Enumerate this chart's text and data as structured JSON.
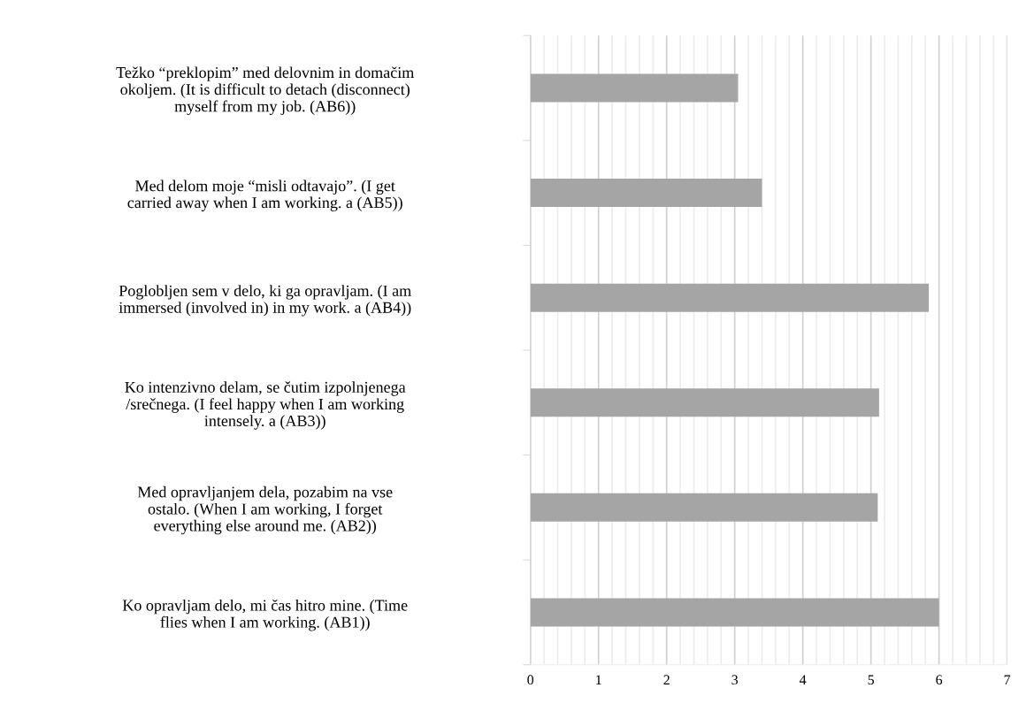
{
  "chart_data": {
    "type": "bar",
    "orientation": "horizontal",
    "categories": [
      "Težko “preklopim” med delovnim in domačim\nokoljem. (It is difficult to detach (disconnect)\nmyself from my job. (AB6))",
      "Med delom moje “misli odtavajo”. (I get\ncarried away when I am working. a (AB5))",
      "Poglobljen sem v delo, ki ga opravljam. (I am\nimmersed (involved in) in my work. a (AB4))",
      "Ko intenzivno delam, se čutim izpolnjenega\n/srečnega. (I feel happy when I am working\nintensely. a (AB3))",
      "Med opravljanjem dela, pozabim na vse\nostalo. (When I am working, I forget\neverything else around me. (AB2))",
      "Ko opravljam delo, mi čas hitro mine. (Time\nflies when I am working. (AB1))"
    ],
    "values": [
      3.05,
      3.4,
      5.85,
      5.12,
      5.1,
      6.0
    ],
    "color": "#a5a5a5",
    "xlim": [
      0,
      7
    ],
    "xticks": [
      0,
      {
        "value": 0.2,
        "label": null
      },
      {
        "value": 0.4,
        "label": null
      },
      {
        "value": 0.6,
        "label": null
      },
      {
        "value": 0.8,
        "label": null
      },
      1,
      {
        "value": 1.2,
        "label": null
      },
      {
        "value": 1.4,
        "label": null
      },
      {
        "value": 1.6,
        "label": null
      },
      {
        "value": 1.8,
        "label": null
      },
      2,
      {
        "value": 2.2,
        "label": null
      },
      {
        "value": 2.4,
        "label": null
      },
      {
        "value": 2.6,
        "label": null
      },
      {
        "value": 2.8,
        "label": null
      },
      3,
      {
        "value": 3.2,
        "label": null
      },
      {
        "value": 3.4,
        "label": null
      },
      {
        "value": 3.6,
        "label": null
      },
      {
        "value": 3.8,
        "label": null
      },
      4,
      {
        "value": 4.2,
        "label": null
      },
      {
        "value": 4.4,
        "label": null
      },
      {
        "value": 4.6,
        "label": null
      },
      {
        "value": 4.8,
        "label": null
      },
      5,
      {
        "value": 5.2,
        "label": null
      },
      {
        "value": 5.4,
        "label": null
      },
      {
        "value": 5.6,
        "label": null
      },
      {
        "value": 5.8,
        "label": null
      },
      6,
      {
        "value": 6.2,
        "label": null
      },
      {
        "value": 6.4,
        "label": null
      },
      {
        "value": 6.6,
        "label": null
      },
      {
        "value": 6.8,
        "label": null
      },
      7
    ],
    "grid": "x"
  }
}
